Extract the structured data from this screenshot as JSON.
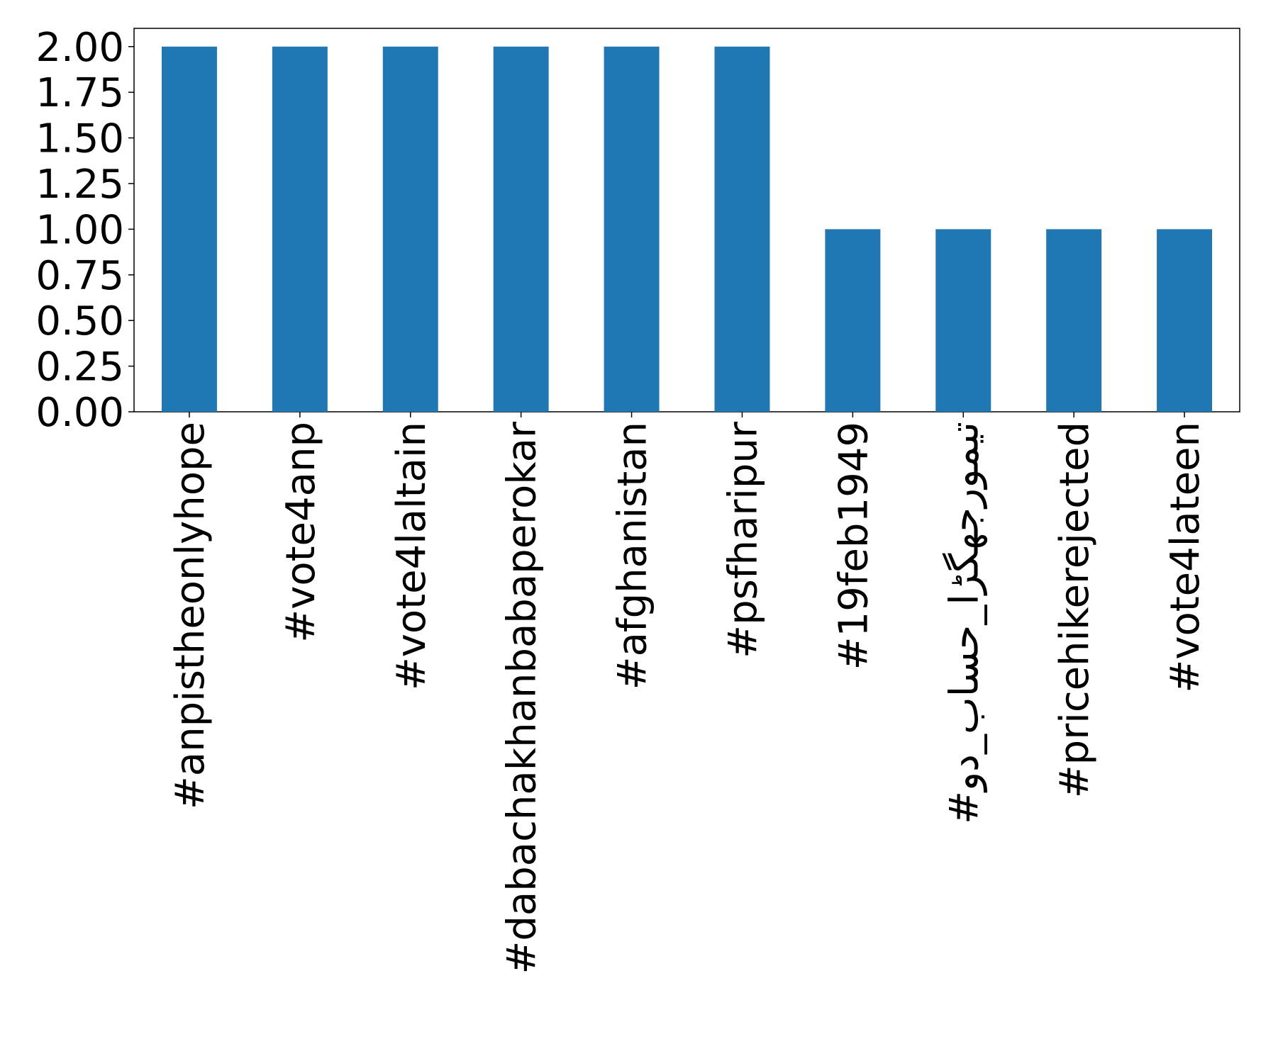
{
  "chart_data": {
    "type": "bar",
    "categories": [
      "#anpistheonlyhope",
      "#vote4anp",
      "#vote4laltain",
      "#dabachakhanbabaperokar",
      "#afghanistan",
      "#psfharipur",
      "#19feb1949",
      "#تیمورجھگڑا_حساب_دو",
      "#pricehikerejected",
      "#vote4lateen"
    ],
    "values": [
      2,
      2,
      2,
      2,
      2,
      2,
      1,
      1,
      1,
      1
    ],
    "color": "#1f77b4",
    "ylim": [
      0,
      2.1
    ],
    "yticks": [
      {
        "value": 0,
        "label": "0.00"
      },
      0.25,
      {
        "value": 0.5,
        "label": "0.50"
      },
      0.75,
      {
        "value": 1,
        "label": "1.00"
      },
      1.25,
      {
        "value": 1.5,
        "label": "1.50"
      },
      1.75,
      {
        "value": 2,
        "label": "2.00"
      }
    ],
    "grid": false
  }
}
